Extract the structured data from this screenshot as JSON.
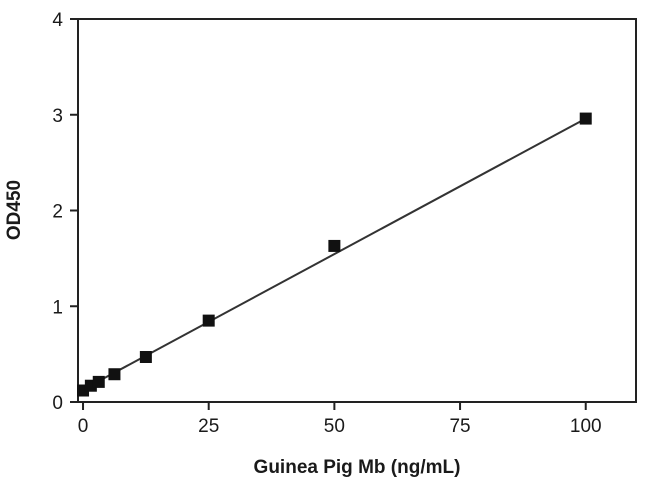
{
  "chart_data": {
    "type": "scatter",
    "title": "",
    "xlabel": "Guinea Pig Mb (ng/mL)",
    "ylabel": "OD450",
    "xlim": [
      -1,
      110
    ],
    "ylim": [
      0,
      4
    ],
    "xticks": [
      0,
      25,
      50,
      75,
      100
    ],
    "yticks": [
      0,
      1,
      2,
      3,
      4
    ],
    "grid": false,
    "legend": "none",
    "series": [
      {
        "marker": "square",
        "color": "#111111",
        "x": [
          0,
          1.56,
          3.13,
          6.25,
          12.5,
          25,
          50,
          100
        ],
        "y": [
          0.12,
          0.17,
          0.21,
          0.29,
          0.47,
          0.85,
          1.63,
          2.96
        ]
      }
    ],
    "fit_line": {
      "type": "linear",
      "color": "#333333",
      "x": [
        0,
        100
      ],
      "y": [
        0.13,
        2.96
      ]
    }
  }
}
